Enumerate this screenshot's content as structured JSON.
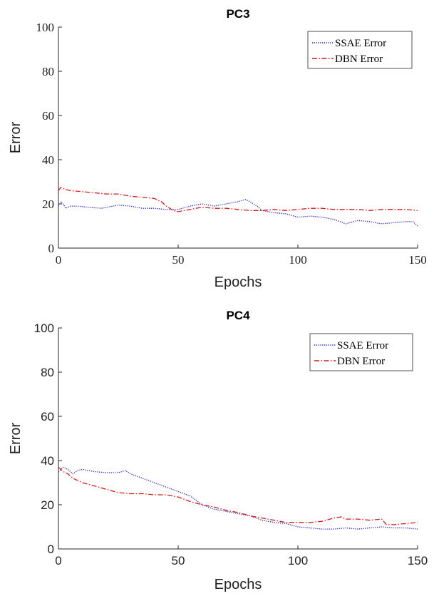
{
  "chart_data": [
    {
      "type": "line",
      "title": "PC3",
      "xlabel": "Epochs",
      "ylabel": "Error",
      "xlim": [
        0,
        150
      ],
      "ylim": [
        0,
        100
      ],
      "x_ticks": [
        "0",
        "50",
        "100",
        "150"
      ],
      "y_ticks": [
        "0",
        "20",
        "40",
        "60",
        "80",
        "100"
      ],
      "tick_font": "serif",
      "legend_position": "top-right",
      "series": [
        {
          "name": "SSAE Error",
          "color": "#1f1fd6",
          "style": "dotted",
          "x": [
            0,
            1,
            2,
            3,
            5,
            8,
            12,
            18,
            25,
            30,
            35,
            40,
            45,
            50,
            55,
            60,
            65,
            70,
            75,
            78,
            80,
            83,
            85,
            90,
            95,
            100,
            105,
            110,
            115,
            120,
            125,
            130,
            135,
            140,
            145,
            148,
            150
          ],
          "y": [
            19,
            21,
            20,
            18,
            19,
            19,
            18.5,
            18,
            19.5,
            19,
            18,
            18,
            17.5,
            17.5,
            19,
            20,
            19,
            20,
            21,
            22,
            21,
            19,
            17,
            16,
            15.5,
            14,
            14.5,
            14,
            13,
            11,
            12.5,
            12,
            11,
            11.5,
            12,
            12,
            10
          ]
        },
        {
          "name": "DBN Error",
          "color": "#e01515",
          "style": "dashdot",
          "x": [
            0,
            1,
            2,
            3,
            5,
            10,
            15,
            20,
            25,
            30,
            35,
            40,
            43,
            45,
            48,
            50,
            55,
            60,
            65,
            70,
            75,
            80,
            85,
            90,
            95,
            100,
            105,
            110,
            115,
            120,
            125,
            130,
            135,
            140,
            145,
            150
          ],
          "y": [
            26,
            27.5,
            27,
            26.5,
            26,
            25.5,
            25,
            24.5,
            24.5,
            23.5,
            23,
            22.5,
            21,
            19,
            17,
            16.5,
            17.5,
            18.5,
            18,
            18,
            17.5,
            17,
            17,
            17.5,
            17,
            17.5,
            18,
            18,
            17.5,
            17.5,
            17.5,
            17,
            17.5,
            17.5,
            17.5,
            17
          ]
        }
      ]
    },
    {
      "type": "line",
      "title": "PC4",
      "xlabel": "Epochs",
      "ylabel": "Error",
      "xlim": [
        0,
        150
      ],
      "ylim": [
        0,
        100
      ],
      "x_ticks": [
        "0",
        "50",
        "100",
        "150"
      ],
      "y_ticks": [
        "0",
        "20",
        "40",
        "60",
        "80",
        "100"
      ],
      "tick_font": "sans",
      "legend_position": "top-right",
      "series": [
        {
          "name": "SSAE Error",
          "color": "#1f1fd6",
          "style": "dotted",
          "x": [
            0,
            2,
            4,
            6,
            8,
            10,
            15,
            20,
            25,
            28,
            30,
            35,
            40,
            45,
            50,
            55,
            60,
            65,
            70,
            75,
            80,
            85,
            90,
            95,
            100,
            105,
            110,
            115,
            120,
            125,
            130,
            135,
            140,
            145,
            150
          ],
          "y": [
            35,
            37,
            36,
            34,
            35.5,
            36,
            35,
            34.5,
            34.5,
            35.5,
            34,
            32,
            30,
            28,
            26,
            24,
            20,
            18,
            17,
            16,
            15,
            13,
            12,
            11.5,
            10,
            9.5,
            9,
            9,
            9.5,
            9,
            9.5,
            10,
            9.5,
            9.5,
            9
          ]
        },
        {
          "name": "DBN Error",
          "color": "#e01515",
          "style": "dashdot",
          "x": [
            0,
            2,
            4,
            6,
            10,
            15,
            20,
            25,
            30,
            35,
            40,
            45,
            50,
            55,
            60,
            65,
            70,
            75,
            80,
            85,
            90,
            95,
            100,
            105,
            110,
            115,
            118,
            120,
            125,
            130,
            135,
            137,
            140,
            145,
            150
          ],
          "y": [
            37,
            35,
            34,
            32,
            30,
            28.5,
            27,
            25.5,
            25,
            25,
            24.5,
            24.5,
            23.5,
            21.5,
            20,
            19,
            17.5,
            16.5,
            15,
            14,
            13,
            12,
            12,
            12,
            12.5,
            14,
            14.5,
            13.5,
            13.5,
            13,
            13.5,
            11,
            11,
            11.5,
            12
          ]
        }
      ]
    }
  ]
}
